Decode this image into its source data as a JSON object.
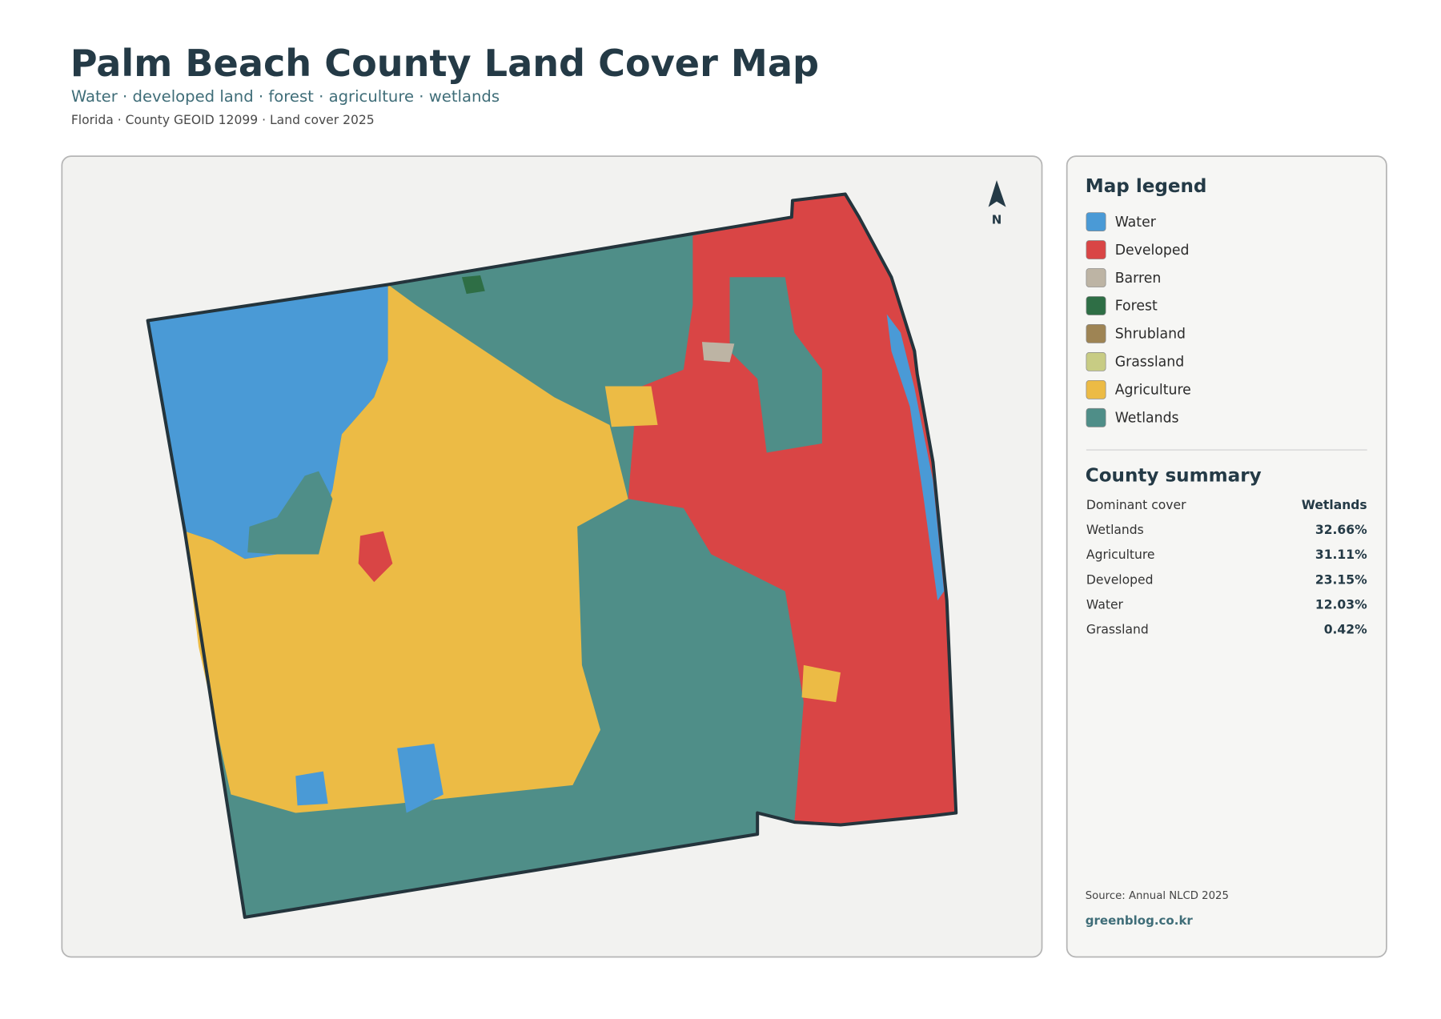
{
  "header": {
    "title": "Palm Beach County Land Cover Map",
    "subtitle": "Water · developed land · forest · agriculture · wetlands",
    "meta": "Florida · County GEOID 12099 · Land cover 2025"
  },
  "map": {
    "north_label": "N"
  },
  "legend": {
    "title": "Map legend",
    "items": [
      {
        "name": "Water",
        "color": "#4a9ad6"
      },
      {
        "name": "Developed",
        "color": "#d94545"
      },
      {
        "name": "Barren",
        "color": "#bdb4a4"
      },
      {
        "name": "Forest",
        "color": "#2e6e45"
      },
      {
        "name": "Shrubland",
        "color": "#9e8454"
      },
      {
        "name": "Grassland",
        "color": "#c8cc84"
      },
      {
        "name": "Agriculture",
        "color": "#ecbb45"
      },
      {
        "name": "Wetlands",
        "color": "#4f8e88"
      }
    ]
  },
  "summary": {
    "title": "County summary",
    "rows": [
      {
        "label": "Dominant cover",
        "value": "Wetlands"
      },
      {
        "label": "Wetlands",
        "value": "32.66%"
      },
      {
        "label": "Agriculture",
        "value": "31.11%"
      },
      {
        "label": "Developed",
        "value": "23.15%"
      },
      {
        "label": "Water",
        "value": "12.03%"
      },
      {
        "label": "Grassland",
        "value": "0.42%"
      }
    ]
  },
  "footer": {
    "source": "Source: Annual NLCD 2025",
    "site": "greenblog.co.kr"
  }
}
